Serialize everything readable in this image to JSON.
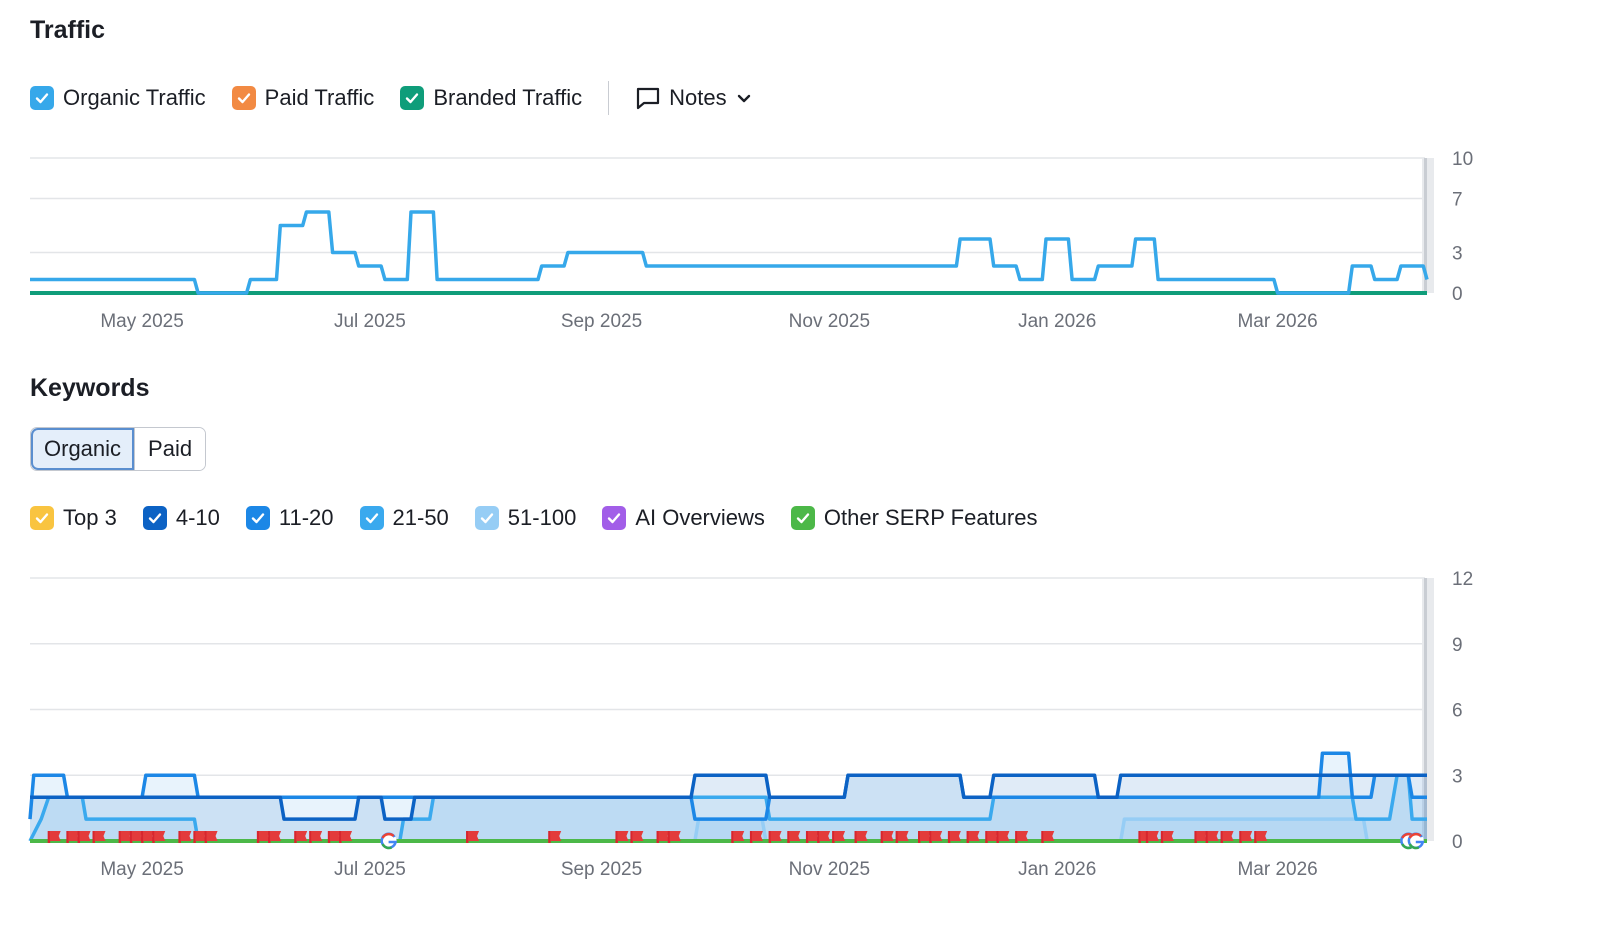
{
  "traffic": {
    "title": "Traffic",
    "legend": [
      {
        "label": "Organic Traffic",
        "color": "#36a8ea",
        "checked": true
      },
      {
        "label": "Paid Traffic",
        "color": "#f28a43",
        "checked": true
      },
      {
        "label": "Branded Traffic",
        "color": "#0f9d7a",
        "checked": true
      }
    ],
    "notes_label": "Notes"
  },
  "keywords": {
    "title": "Keywords",
    "tabs": [
      {
        "label": "Organic",
        "active": true
      },
      {
        "label": "Paid",
        "active": false
      }
    ],
    "legend": [
      {
        "label": "Top 3",
        "color": "#f9c440",
        "checked": true
      },
      {
        "label": "4-10",
        "color": "#0c62c4",
        "checked": true
      },
      {
        "label": "11-20",
        "color": "#1c87e6",
        "checked": true
      },
      {
        "label": "21-50",
        "color": "#3aa9ee",
        "checked": true
      },
      {
        "label": "51-100",
        "color": "#96cdf5",
        "checked": true
      },
      {
        "label": "AI Overviews",
        "color": "#a25ee8",
        "checked": true
      },
      {
        "label": "Other SERP Features",
        "color": "#4cb848",
        "checked": true
      }
    ]
  },
  "chart_data": [
    {
      "type": "line",
      "x_tick_labels": [
        "May 2025",
        "Jul 2025",
        "Sep 2025",
        "Nov 2025",
        "Jan 2026",
        "Mar 2026"
      ],
      "y_tick_labels": [
        "0",
        "3",
        "7",
        "10"
      ],
      "ylim": [
        0,
        10
      ],
      "x_range": [
        "2025-04-01",
        "2026-03-31"
      ],
      "grid": true,
      "series": [
        {
          "name": "Organic Traffic",
          "color": "#36a8ea",
          "points": [
            [
              "2025-04-01",
              1
            ],
            [
              "2025-05-15",
              1
            ],
            [
              "2025-05-16",
              0
            ],
            [
              "2025-05-29",
              0
            ],
            [
              "2025-05-30",
              1
            ],
            [
              "2025-06-06",
              1
            ],
            [
              "2025-06-07",
              5
            ],
            [
              "2025-06-13",
              5
            ],
            [
              "2025-06-14",
              6
            ],
            [
              "2025-06-20",
              6
            ],
            [
              "2025-06-21",
              3
            ],
            [
              "2025-06-27",
              3
            ],
            [
              "2025-06-28",
              2
            ],
            [
              "2025-07-04",
              2
            ],
            [
              "2025-07-05",
              1
            ],
            [
              "2025-07-11",
              1
            ],
            [
              "2025-07-12",
              6
            ],
            [
              "2025-07-18",
              6
            ],
            [
              "2025-07-19",
              1
            ],
            [
              "2025-08-15",
              1
            ],
            [
              "2025-08-16",
              2
            ],
            [
              "2025-08-22",
              2
            ],
            [
              "2025-08-23",
              3
            ],
            [
              "2025-09-12",
              3
            ],
            [
              "2025-09-13",
              2
            ],
            [
              "2025-12-05",
              2
            ],
            [
              "2025-12-06",
              4
            ],
            [
              "2025-12-14",
              4
            ],
            [
              "2025-12-15",
              2
            ],
            [
              "2025-12-21",
              2
            ],
            [
              "2025-12-22",
              1
            ],
            [
              "2025-12-28",
              1
            ],
            [
              "2025-12-29",
              4
            ],
            [
              "2026-01-04",
              4
            ],
            [
              "2026-01-05",
              1
            ],
            [
              "2026-01-11",
              1
            ],
            [
              "2026-01-12",
              2
            ],
            [
              "2026-01-21",
              2
            ],
            [
              "2026-01-22",
              4
            ],
            [
              "2026-01-27",
              4
            ],
            [
              "2026-01-28",
              1
            ],
            [
              "2026-02-28",
              1
            ],
            [
              "2026-03-01",
              0
            ],
            [
              "2026-03-20",
              0
            ],
            [
              "2026-03-21",
              2
            ],
            [
              "2026-03-26",
              2
            ],
            [
              "2026-03-27",
              1
            ],
            [
              "2026-04-02",
              1
            ],
            [
              "2026-04-03",
              2
            ],
            [
              "2026-04-09",
              2
            ],
            [
              "2026-04-10",
              1
            ]
          ]
        },
        {
          "name": "Paid Traffic",
          "color": "#f28a43",
          "points": [
            [
              "2025-04-01",
              0
            ],
            [
              "2026-04-10",
              0
            ]
          ]
        },
        {
          "name": "Branded Traffic",
          "color": "#0f9d7a",
          "points": [
            [
              "2025-04-01",
              0
            ],
            [
              "2026-04-10",
              0
            ]
          ]
        }
      ]
    },
    {
      "type": "area",
      "x_tick_labels": [
        "May 2025",
        "Jul 2025",
        "Sep 2025",
        "Nov 2025",
        "Jan 2026",
        "Mar 2026"
      ],
      "y_tick_labels": [
        "0",
        "3",
        "6",
        "9",
        "12"
      ],
      "ylim": [
        0,
        12
      ],
      "x_range": [
        "2025-04-01",
        "2026-03-31"
      ],
      "grid": true,
      "series": [
        {
          "name": "4-10",
          "color": "#0c62c4",
          "points": [
            [
              "2025-04-01",
              2
            ],
            [
              "2025-06-07",
              2
            ],
            [
              "2025-06-08",
              1
            ],
            [
              "2025-06-27",
              1
            ],
            [
              "2025-06-28",
              2
            ],
            [
              "2025-07-04",
              2
            ],
            [
              "2025-07-05",
              1
            ],
            [
              "2025-07-12",
              1
            ],
            [
              "2025-07-13",
              2
            ],
            [
              "2025-09-25",
              2
            ],
            [
              "2025-09-26",
              3
            ],
            [
              "2025-10-15",
              3
            ],
            [
              "2025-10-16",
              2
            ],
            [
              "2025-11-05",
              2
            ],
            [
              "2025-11-06",
              3
            ],
            [
              "2025-12-06",
              3
            ],
            [
              "2025-12-07",
              2
            ],
            [
              "2025-12-14",
              2
            ],
            [
              "2025-12-15",
              3
            ],
            [
              "2026-01-11",
              3
            ],
            [
              "2026-01-12",
              2
            ],
            [
              "2026-01-17",
              2
            ],
            [
              "2026-01-18",
              3
            ],
            [
              "2026-04-10",
              3
            ]
          ]
        },
        {
          "name": "11-20",
          "color": "#1c87e6",
          "points": [
            [
              "2025-04-01",
              1
            ],
            [
              "2025-04-02",
              3
            ],
            [
              "2025-04-10",
              3
            ],
            [
              "2025-04-11",
              2
            ],
            [
              "2025-05-01",
              2
            ],
            [
              "2025-05-02",
              3
            ],
            [
              "2025-05-15",
              3
            ],
            [
              "2025-05-16",
              2
            ],
            [
              "2025-09-25",
              2
            ],
            [
              "2025-09-26",
              1
            ],
            [
              "2025-10-15",
              1
            ],
            [
              "2025-10-16",
              2
            ],
            [
              "2025-11-05",
              2
            ],
            [
              "2025-11-06",
              3
            ],
            [
              "2025-12-06",
              3
            ],
            [
              "2025-12-07",
              2
            ],
            [
              "2026-03-12",
              2
            ],
            [
              "2026-03-13",
              4
            ],
            [
              "2026-03-20",
              4
            ],
            [
              "2026-03-21",
              2
            ],
            [
              "2026-03-26",
              2
            ],
            [
              "2026-03-27",
              3
            ],
            [
              "2026-04-05",
              3
            ],
            [
              "2026-04-06",
              2
            ],
            [
              "2026-04-10",
              2
            ]
          ]
        },
        {
          "name": "21-50",
          "color": "#3aa9ee",
          "points": [
            [
              "2025-04-01",
              0
            ],
            [
              "2025-04-04",
              1
            ],
            [
              "2025-04-06",
              2
            ],
            [
              "2025-04-15",
              2
            ],
            [
              "2025-04-16",
              1
            ],
            [
              "2025-05-01",
              1
            ],
            [
              "2025-05-02",
              1
            ],
            [
              "2025-05-15",
              1
            ],
            [
              "2025-05-16",
              0
            ],
            [
              "2025-07-09",
              0
            ],
            [
              "2025-07-10",
              1
            ],
            [
              "2025-07-17",
              1
            ],
            [
              "2025-07-18",
              2
            ],
            [
              "2025-10-15",
              2
            ],
            [
              "2025-10-16",
              1
            ],
            [
              "2025-11-05",
              1
            ],
            [
              "2025-11-06",
              1
            ],
            [
              "2025-12-14",
              1
            ],
            [
              "2025-12-15",
              2
            ],
            [
              "2026-03-21",
              2
            ],
            [
              "2026-03-22",
              1
            ],
            [
              "2026-03-31",
              1
            ],
            [
              "2026-04-02",
              3
            ],
            [
              "2026-04-05",
              3
            ],
            [
              "2026-04-06",
              1
            ],
            [
              "2026-04-10",
              1
            ]
          ]
        },
        {
          "name": "51-100",
          "color": "#96cdf5",
          "points": [
            [
              "2025-04-01",
              0
            ],
            [
              "2025-09-26",
              0
            ],
            [
              "2025-09-27",
              1
            ],
            [
              "2025-10-14",
              1
            ],
            [
              "2025-10-15",
              0
            ],
            [
              "2026-01-18",
              0
            ],
            [
              "2026-01-19",
              1
            ],
            [
              "2026-03-24",
              1
            ],
            [
              "2026-03-25",
              0
            ],
            [
              "2026-04-10",
              0
            ]
          ]
        },
        {
          "name": "Other SERP Features",
          "color": "#4cb848",
          "points": [
            [
              "2025-04-01",
              0
            ],
            [
              "2026-04-10",
              0
            ]
          ]
        }
      ],
      "serp_flags": [
        "2025-04-06",
        "2025-04-11",
        "2025-04-14",
        "2025-04-18",
        "2025-04-25",
        "2025-04-28",
        "2025-05-01",
        "2025-05-04",
        "2025-05-11",
        "2025-05-15",
        "2025-05-18",
        "2025-06-01",
        "2025-06-04",
        "2025-06-11",
        "2025-06-15",
        "2025-06-20",
        "2025-06-23",
        "2025-07-27",
        "2025-08-18",
        "2025-09-05",
        "2025-09-09",
        "2025-09-16",
        "2025-09-19",
        "2025-10-06",
        "2025-10-11",
        "2025-10-16",
        "2025-10-21",
        "2025-10-26",
        "2025-10-29",
        "2025-11-02",
        "2025-11-08",
        "2025-11-15",
        "2025-11-19",
        "2025-11-25",
        "2025-11-28",
        "2025-12-03",
        "2025-12-08",
        "2025-12-13",
        "2025-12-16",
        "2025-12-21",
        "2025-12-28",
        "2026-01-23",
        "2026-01-25",
        "2026-01-29",
        "2026-02-07",
        "2026-02-10",
        "2026-02-14",
        "2026-02-19",
        "2026-02-23"
      ],
      "google_icons": [
        "2025-07-06",
        "2026-04-05",
        "2026-04-07"
      ]
    }
  ]
}
